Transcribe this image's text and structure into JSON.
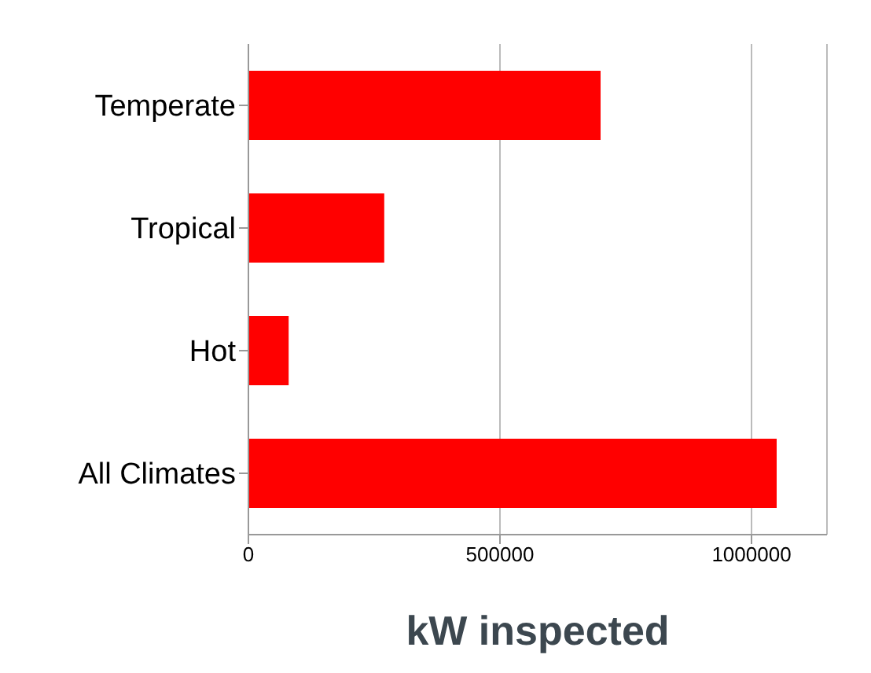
{
  "chart_data": {
    "type": "bar",
    "orientation": "horizontal",
    "categories": [
      "Temperate",
      "Tropical",
      "Hot",
      "All Climates"
    ],
    "values": [
      700000,
      270000,
      80000,
      1050000
    ],
    "color": "#ff0000",
    "xlabel": "kW inspected",
    "xlim": [
      0,
      1150000
    ],
    "xticks": [
      0,
      500000,
      1000000
    ],
    "grid": "x"
  }
}
